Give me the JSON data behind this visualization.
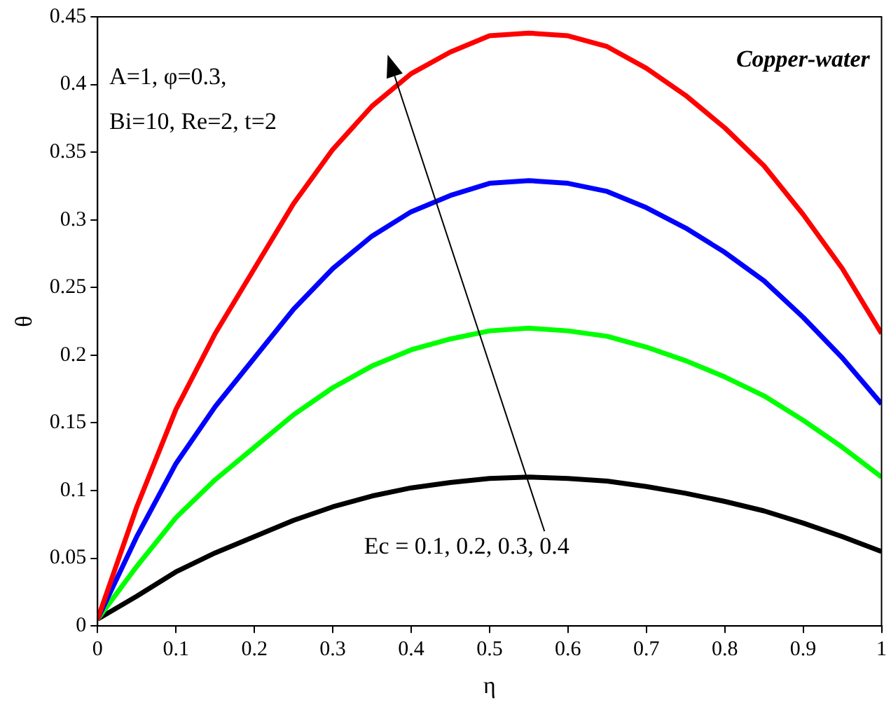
{
  "chart_data": {
    "type": "line",
    "xlabel": "η",
    "ylabel": "θ",
    "x": [
      0,
      0.05,
      0.1,
      0.15,
      0.2,
      0.25,
      0.3,
      0.35,
      0.4,
      0.45,
      0.5,
      0.55,
      0.6,
      0.65,
      0.7,
      0.75,
      0.8,
      0.85,
      0.9,
      0.95,
      1
    ],
    "series": [
      {
        "color": "#ff0000",
        "values": [
          0.005,
          0.088,
          0.16,
          0.216,
          0.264,
          0.312,
          0.352,
          0.384,
          0.408,
          0.424,
          0.436,
          0.438,
          0.436,
          0.428,
          0.412,
          0.392,
          0.368,
          0.34,
          0.304,
          0.264,
          0.216
        ]
      },
      {
        "color": "#0000ff",
        "values": [
          0.005,
          0.066,
          0.12,
          0.162,
          0.198,
          0.234,
          0.264,
          0.288,
          0.306,
          0.318,
          0.327,
          0.329,
          0.327,
          0.321,
          0.309,
          0.294,
          0.276,
          0.255,
          0.228,
          0.198,
          0.164
        ]
      },
      {
        "color": "#00ff00",
        "values": [
          0.005,
          0.044,
          0.08,
          0.108,
          0.132,
          0.156,
          0.176,
          0.192,
          0.204,
          0.212,
          0.218,
          0.22,
          0.218,
          0.214,
          0.206,
          0.196,
          0.184,
          0.17,
          0.152,
          0.132,
          0.11
        ]
      },
      {
        "color": "#000000",
        "values": [
          0.005,
          0.022,
          0.04,
          0.054,
          0.066,
          0.078,
          0.088,
          0.096,
          0.102,
          0.106,
          0.109,
          0.11,
          0.109,
          0.107,
          0.103,
          0.098,
          0.092,
          0.085,
          0.076,
          0.066,
          0.055
        ]
      }
    ],
    "xlim": [
      0,
      1
    ],
    "xticks": [
      0,
      0.1,
      0.2,
      0.3,
      0.4,
      0.5,
      0.6,
      0.7,
      0.8,
      0.9,
      1
    ],
    "ylim": [
      0,
      0.45
    ],
    "yticks": [
      0,
      0.05,
      0.1,
      0.15,
      0.2,
      0.25,
      0.3,
      0.35,
      0.4,
      0.45
    ],
    "annotations": [
      "A=1, φ=0.3,",
      "Bi=10, Re=2, t=2",
      "Copper-water",
      "Ec = 0.1, 0.2, 0.3, 0.4"
    ],
    "grid": false,
    "legend": false,
    "marker": "none",
    "line_style": "solid"
  }
}
